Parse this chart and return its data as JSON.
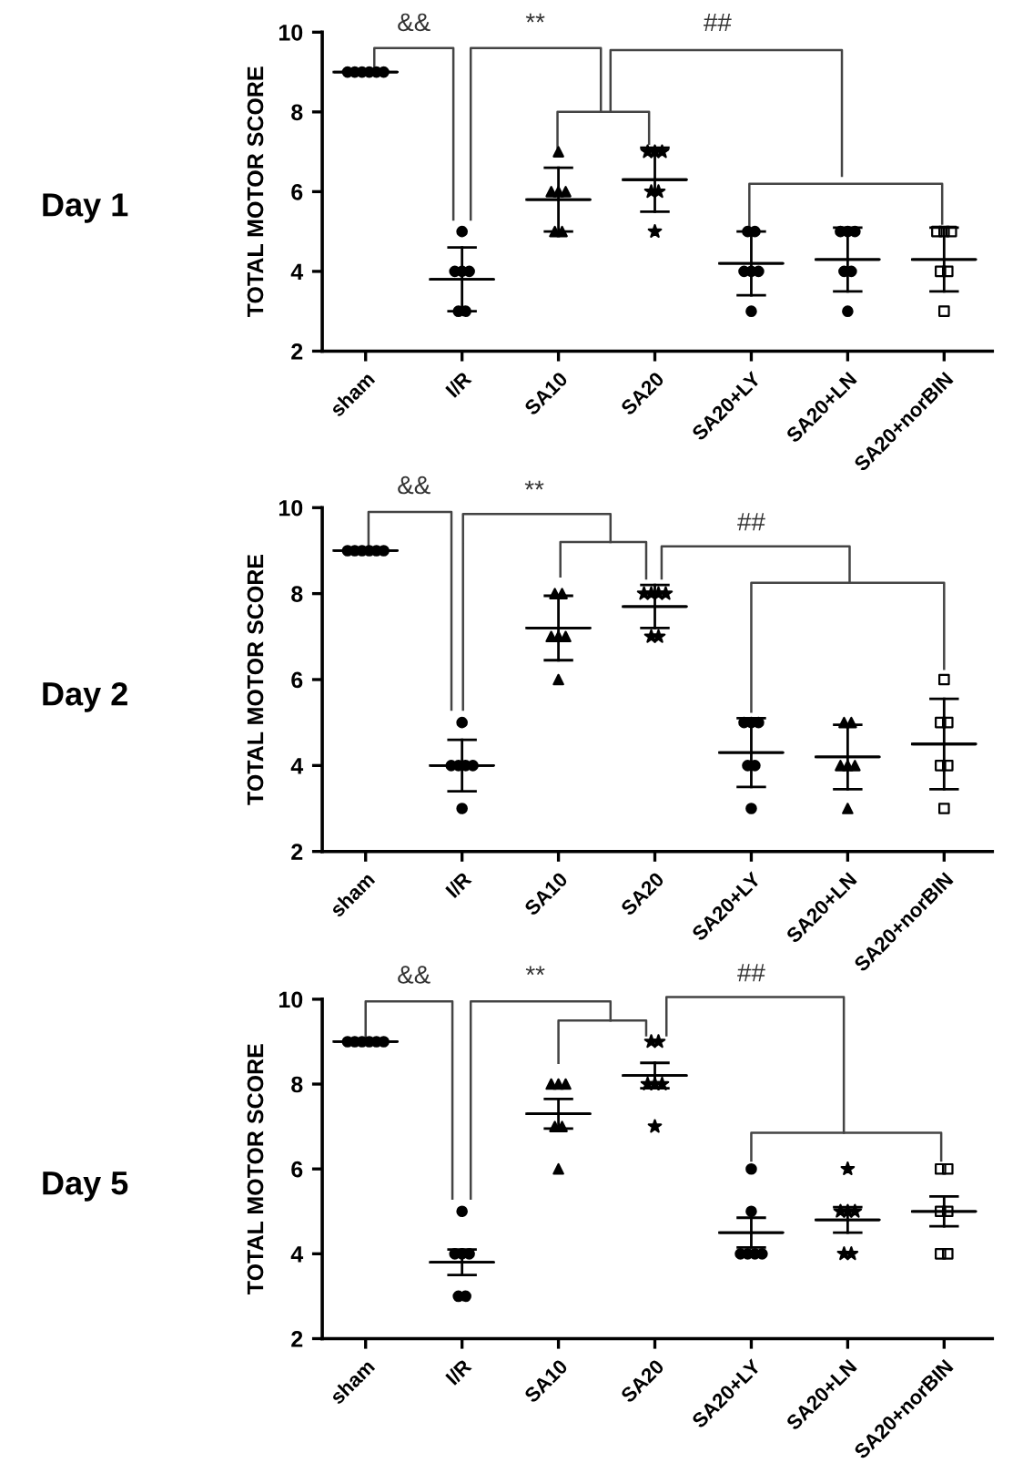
{
  "chart_data": [
    {
      "type": "box",
      "title": "Day 1",
      "ylabel": "TOTAL MOTOR SCORE",
      "categories": [
        "sham",
        "I/R",
        "SA10",
        "SA20",
        "SA20+LY",
        "SA20+LN",
        "SA20+norBIN"
      ],
      "ylim": [
        2,
        10
      ],
      "yticks": [
        2,
        4,
        6,
        8,
        10
      ],
      "annotations": [
        "&&",
        "**",
        "##"
      ],
      "boxes": [
        {
          "low": 9,
          "q1": 9,
          "median": 9,
          "q3": 9,
          "high": 9
        },
        {
          "low": 3.0,
          "q1": 3.8,
          "median": 3.8,
          "q3": 3.8,
          "high": 4.6
        },
        {
          "low": 5.0,
          "q1": 5.8,
          "median": 5.8,
          "q3": 5.8,
          "high": 6.6
        },
        {
          "low": 5.5,
          "q1": 6.3,
          "median": 6.3,
          "q3": 6.3,
          "high": 7.1
        },
        {
          "low": 3.4,
          "q1": 4.2,
          "median": 4.2,
          "q3": 4.2,
          "high": 5.0
        },
        {
          "low": 3.5,
          "q1": 4.3,
          "median": 4.3,
          "q3": 4.3,
          "high": 5.1
        },
        {
          "low": 3.5,
          "q1": 4.3,
          "median": 4.3,
          "q3": 4.3,
          "high": 5.1
        }
      ],
      "series": [
        {
          "type": "scatter",
          "color": "#000000",
          "marker": "circle",
          "x": [
            "sham",
            "sham",
            "sham",
            "sham",
            "sham",
            "sham"
          ],
          "values": [
            9,
            9,
            9,
            9,
            9,
            9
          ]
        },
        {
          "type": "scatter",
          "color": "#000000",
          "marker": "circle",
          "x": [
            "I/R",
            "I/R",
            "I/R",
            "I/R",
            "I/R",
            "I/R"
          ],
          "values": [
            5,
            4,
            4,
            4,
            3,
            3
          ]
        },
        {
          "type": "scatter",
          "color": "#000000",
          "marker": "triangle",
          "x": [
            "SA10",
            "SA10",
            "SA10",
            "SA10",
            "SA10",
            "SA10"
          ],
          "values": [
            7,
            6,
            6,
            6,
            5,
            5
          ]
        },
        {
          "type": "scatter",
          "color": "#000000",
          "marker": "star",
          "x": [
            "SA20",
            "SA20",
            "SA20",
            "SA20",
            "SA20",
            "SA20"
          ],
          "values": [
            7,
            7,
            7,
            6,
            6,
            5
          ]
        },
        {
          "type": "scatter",
          "color": "#000000",
          "marker": "circle",
          "x": [
            "SA20+LY",
            "SA20+LY",
            "SA20+LY",
            "SA20+LY",
            "SA20+LY",
            "SA20+LY"
          ],
          "values": [
            5,
            5,
            4,
            4,
            4,
            3
          ]
        },
        {
          "type": "scatter",
          "color": "#000000",
          "marker": "circle",
          "x": [
            "SA20+LN",
            "SA20+LN",
            "SA20+LN",
            "SA20+LN",
            "SA20+LN",
            "SA20+LN"
          ],
          "values": [
            5,
            5,
            5,
            4,
            4,
            3
          ]
        },
        {
          "type": "scatter",
          "color": "#000000",
          "marker": "square",
          "x": [
            "SA20+norBIN",
            "SA20+norBIN",
            "SA20+norBIN",
            "SA20+norBIN",
            "SA20+norBIN",
            "SA20+norBIN"
          ],
          "values": [
            5,
            5,
            5,
            4,
            4,
            3
          ]
        }
      ]
    },
    {
      "type": "box",
      "title": "Day 2",
      "ylabel": "TOTAL MOTOR SCORE",
      "categories": [
        "sham",
        "I/R",
        "SA10",
        "SA20",
        "SA20+LY",
        "SA20+LN",
        "SA20+norBIN"
      ],
      "ylim": [
        2,
        10
      ],
      "yticks": [
        2,
        4,
        6,
        8,
        10
      ],
      "annotations": [
        "&&",
        "**",
        "##"
      ],
      "boxes": [
        {
          "low": 9,
          "q1": 9,
          "median": 9,
          "q3": 9,
          "high": 9
        },
        {
          "low": 3.4,
          "q1": 4.0,
          "median": 4.0,
          "q3": 4.0,
          "high": 4.6
        },
        {
          "low": 6.45,
          "q1": 7.2,
          "median": 7.2,
          "q3": 7.2,
          "high": 7.95
        },
        {
          "low": 7.2,
          "q1": 7.7,
          "median": 7.7,
          "q3": 7.7,
          "high": 8.2
        },
        {
          "low": 3.5,
          "q1": 4.3,
          "median": 4.3,
          "q3": 4.3,
          "high": 5.1
        },
        {
          "low": 3.45,
          "q1": 4.2,
          "median": 4.2,
          "q3": 4.2,
          "high": 4.95
        },
        {
          "low": 3.45,
          "q1": 4.5,
          "median": 4.5,
          "q3": 4.5,
          "high": 5.55
        }
      ],
      "series": [
        {
          "type": "scatter",
          "color": "#000000",
          "marker": "circle",
          "x": [
            "sham",
            "sham",
            "sham",
            "sham",
            "sham",
            "sham"
          ],
          "values": [
            9,
            9,
            9,
            9,
            9,
            9
          ]
        },
        {
          "type": "scatter",
          "color": "#000000",
          "marker": "circle",
          "x": [
            "I/R",
            "I/R",
            "I/R",
            "I/R",
            "I/R",
            "I/R"
          ],
          "values": [
            5,
            4,
            4,
            4,
            4,
            3
          ]
        },
        {
          "type": "scatter",
          "color": "#000000",
          "marker": "triangle",
          "x": [
            "SA10",
            "SA10",
            "SA10",
            "SA10",
            "SA10",
            "SA10"
          ],
          "values": [
            8,
            8,
            7,
            7,
            7,
            6
          ]
        },
        {
          "type": "scatter",
          "color": "#000000",
          "marker": "star",
          "x": [
            "SA20",
            "SA20",
            "SA20",
            "SA20",
            "SA20",
            "SA20"
          ],
          "values": [
            8,
            8,
            8,
            8,
            7,
            7
          ]
        },
        {
          "type": "scatter",
          "color": "#000000",
          "marker": "circle",
          "x": [
            "SA20+LY",
            "SA20+LY",
            "SA20+LY",
            "SA20+LY",
            "SA20+LY",
            "SA20+LY"
          ],
          "values": [
            5,
            5,
            5,
            4,
            4,
            3
          ]
        },
        {
          "type": "scatter",
          "color": "#000000",
          "marker": "triangle",
          "x": [
            "SA20+LN",
            "SA20+LN",
            "SA20+LN",
            "SA20+LN",
            "SA20+LN",
            "SA20+LN"
          ],
          "values": [
            5,
            5,
            4,
            4,
            4,
            3
          ]
        },
        {
          "type": "scatter",
          "color": "#000000",
          "marker": "square",
          "x": [
            "SA20+norBIN",
            "SA20+norBIN",
            "SA20+norBIN",
            "SA20+norBIN",
            "SA20+norBIN",
            "SA20+norBIN"
          ],
          "values": [
            6,
            5,
            5,
            4,
            4,
            3
          ]
        }
      ]
    },
    {
      "type": "box",
      "title": "Day 5",
      "ylabel": "TOTAL MOTOR SCORE",
      "categories": [
        "sham",
        "I/R",
        "SA10",
        "SA20",
        "SA20+LY",
        "SA20+LN",
        "SA20+norBIN"
      ],
      "ylim": [
        2,
        10
      ],
      "yticks": [
        2,
        4,
        6,
        8,
        10
      ],
      "annotations": [
        "&&",
        "**",
        "##"
      ],
      "boxes": [
        {
          "low": 9,
          "q1": 9,
          "median": 9,
          "q3": 9,
          "high": 9
        },
        {
          "low": 3.5,
          "q1": 3.8,
          "median": 3.8,
          "q3": 3.8,
          "high": 4.1
        },
        {
          "low": 6.95,
          "q1": 7.3,
          "median": 7.3,
          "q3": 7.3,
          "high": 7.65
        },
        {
          "low": 7.9,
          "q1": 8.2,
          "median": 8.2,
          "q3": 8.2,
          "high": 8.5
        },
        {
          "low": 4.15,
          "q1": 4.5,
          "median": 4.5,
          "q3": 4.5,
          "high": 4.85
        },
        {
          "low": 4.5,
          "q1": 4.8,
          "median": 4.8,
          "q3": 4.8,
          "high": 5.1
        },
        {
          "low": 4.65,
          "q1": 5.0,
          "median": 5.0,
          "q3": 5.0,
          "high": 5.35
        }
      ],
      "series": [
        {
          "type": "scatter",
          "color": "#000000",
          "marker": "circle",
          "x": [
            "sham",
            "sham",
            "sham",
            "sham",
            "sham",
            "sham"
          ],
          "values": [
            9,
            9,
            9,
            9,
            9,
            9
          ]
        },
        {
          "type": "scatter",
          "color": "#000000",
          "marker": "circle",
          "x": [
            "I/R",
            "I/R",
            "I/R",
            "I/R",
            "I/R",
            "I/R"
          ],
          "values": [
            5,
            4,
            4,
            4,
            3,
            3
          ]
        },
        {
          "type": "scatter",
          "color": "#000000",
          "marker": "triangle",
          "x": [
            "SA10",
            "SA10",
            "SA10",
            "SA10",
            "SA10",
            "SA10"
          ],
          "values": [
            8,
            8,
            8,
            7,
            7,
            6
          ]
        },
        {
          "type": "scatter",
          "color": "#000000",
          "marker": "star",
          "x": [
            "SA20",
            "SA20",
            "SA20",
            "SA20",
            "SA20",
            "SA20"
          ],
          "values": [
            9,
            9,
            8,
            8,
            8,
            7
          ]
        },
        {
          "type": "scatter",
          "color": "#000000",
          "marker": "circle",
          "x": [
            "SA20+LY",
            "SA20+LY",
            "SA20+LY",
            "SA20+LY",
            "SA20+LY",
            "SA20+LY"
          ],
          "values": [
            6,
            5,
            4,
            4,
            4,
            4
          ]
        },
        {
          "type": "scatter",
          "color": "#000000",
          "marker": "star",
          "x": [
            "SA20+LN",
            "SA20+LN",
            "SA20+LN",
            "SA20+LN",
            "SA20+LN",
            "SA20+LN"
          ],
          "values": [
            6,
            5,
            5,
            5,
            4,
            4
          ]
        },
        {
          "type": "scatter",
          "color": "#000000",
          "marker": "square",
          "x": [
            "SA20+norBIN",
            "SA20+norBIN",
            "SA20+norBIN",
            "SA20+norBIN",
            "SA20+norBIN",
            "SA20+norBIN"
          ],
          "values": [
            6,
            6,
            5,
            5,
            4,
            4
          ]
        }
      ]
    }
  ]
}
